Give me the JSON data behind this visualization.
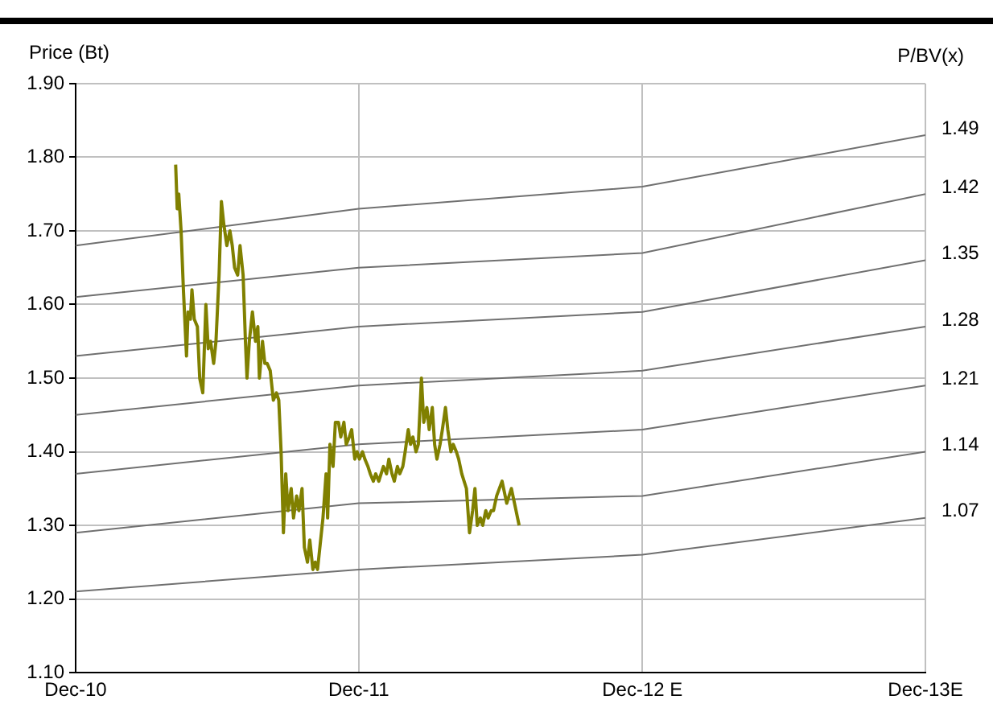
{
  "chart_data": {
    "type": "line",
    "ylabel": "Price (Bt)",
    "y2label": "P/BV(x)",
    "xlim": [
      "2010-12",
      "2013-12"
    ],
    "xticks": [
      {
        "value": "2010-12",
        "label": "Dec-10"
      },
      {
        "value": "2011-12",
        "label": "Dec-11"
      },
      {
        "value": "2012-12",
        "label": "Dec-12 E"
      },
      {
        "value": "2013-12",
        "label": "Dec-13E"
      }
    ],
    "ylim": [
      1.1,
      1.9
    ],
    "yticks": [
      {
        "value": 1.1,
        "label": "1.10"
      },
      {
        "value": 1.2,
        "label": "1.20"
      },
      {
        "value": 1.3,
        "label": "1.30"
      },
      {
        "value": 1.4,
        "label": "1.40"
      },
      {
        "value": 1.5,
        "label": "1.50"
      },
      {
        "value": 1.6,
        "label": "1.60"
      },
      {
        "value": 1.7,
        "label": "1.70"
      },
      {
        "value": 1.8,
        "label": "1.80"
      },
      {
        "value": 1.9,
        "label": "1.90"
      }
    ],
    "grid": true,
    "legend": false,
    "marker": "none",
    "line_style": "solid",
    "series": [
      {
        "color": "#808000",
        "x": [
          "2011-04-09",
          "2011-04-11",
          "2011-04-13",
          "2011-04-16",
          "2011-04-19",
          "2011-04-23",
          "2011-04-25",
          "2011-04-28",
          "2011-04-30",
          "2011-05-03",
          "2011-05-07",
          "2011-05-10",
          "2011-05-14",
          "2011-05-18",
          "2011-05-21",
          "2011-05-24",
          "2011-05-28",
          "2011-05-31",
          "2011-06-04",
          "2011-06-07",
          "2011-06-10",
          "2011-06-14",
          "2011-06-18",
          "2011-06-21",
          "2011-06-24",
          "2011-06-28",
          "2011-07-01",
          "2011-07-05",
          "2011-07-08",
          "2011-07-10",
          "2011-07-13",
          "2011-07-17",
          "2011-07-21",
          "2011-07-24",
          "2011-07-26",
          "2011-07-30",
          "2011-08-02",
          "2011-08-05",
          "2011-08-09",
          "2011-08-13",
          "2011-08-17",
          "2011-08-20",
          "2011-08-23",
          "2011-08-26",
          "2011-08-29",
          "2011-09-01",
          "2011-09-05",
          "2011-09-08",
          "2011-09-12",
          "2011-09-15",
          "2011-09-19",
          "2011-09-22",
          "2011-09-26",
          "2011-09-29",
          "2011-10-03",
          "2011-10-06",
          "2011-10-09",
          "2011-10-13",
          "2011-10-16",
          "2011-10-20",
          "2011-10-22",
          "2011-10-25",
          "2011-10-29",
          "2011-11-01",
          "2011-11-05",
          "2011-11-08",
          "2011-11-12",
          "2011-11-15",
          "2011-11-19",
          "2011-11-22",
          "2011-11-26",
          "2011-11-29",
          "2011-12-02",
          "2011-12-06",
          "2011-12-09",
          "2011-12-13",
          "2011-12-16",
          "2011-12-20",
          "2011-12-23",
          "2011-12-27",
          "2011-12-30",
          "2012-01-02",
          "2012-01-06",
          "2012-01-09",
          "2012-01-13",
          "2012-01-16",
          "2012-01-20",
          "2012-01-23",
          "2012-01-27",
          "2012-01-30",
          "2012-02-03",
          "2012-02-06",
          "2012-02-09",
          "2012-02-13",
          "2012-02-16",
          "2012-02-20",
          "2012-02-23",
          "2012-02-27",
          "2012-03-01",
          "2012-03-05",
          "2012-03-08",
          "2012-03-11",
          "2012-03-15",
          "2012-03-18",
          "2012-03-22",
          "2012-03-25",
          "2012-03-29",
          "2012-04-01",
          "2012-04-05",
          "2012-04-08",
          "2012-04-12",
          "2012-04-15",
          "2012-04-18",
          "2012-04-22",
          "2012-04-26",
          "2012-04-29",
          "2012-05-02",
          "2012-05-06",
          "2012-05-09",
          "2012-05-13",
          "2012-05-16",
          "2012-05-20",
          "2012-05-23",
          "2012-05-27",
          "2012-06-03",
          "2012-06-09",
          "2012-06-15",
          "2012-06-21",
          "2012-06-25"
        ],
        "values": [
          1.79,
          1.73,
          1.75,
          1.7,
          1.62,
          1.53,
          1.59,
          1.58,
          1.62,
          1.58,
          1.57,
          1.5,
          1.48,
          1.6,
          1.54,
          1.55,
          1.52,
          1.55,
          1.64,
          1.74,
          1.71,
          1.68,
          1.7,
          1.68,
          1.65,
          1.64,
          1.68,
          1.64,
          1.55,
          1.5,
          1.55,
          1.59,
          1.55,
          1.57,
          1.5,
          1.55,
          1.52,
          1.52,
          1.51,
          1.47,
          1.48,
          1.47,
          1.4,
          1.29,
          1.37,
          1.32,
          1.35,
          1.31,
          1.34,
          1.32,
          1.35,
          1.27,
          1.25,
          1.28,
          1.24,
          1.25,
          1.24,
          1.28,
          1.31,
          1.37,
          1.31,
          1.41,
          1.38,
          1.44,
          1.44,
          1.42,
          1.44,
          1.41,
          1.42,
          1.43,
          1.39,
          1.4,
          1.39,
          1.4,
          1.39,
          1.38,
          1.37,
          1.36,
          1.37,
          1.36,
          1.37,
          1.38,
          1.37,
          1.39,
          1.37,
          1.36,
          1.38,
          1.37,
          1.38,
          1.4,
          1.43,
          1.41,
          1.42,
          1.4,
          1.41,
          1.5,
          1.44,
          1.46,
          1.43,
          1.46,
          1.41,
          1.39,
          1.41,
          1.43,
          1.46,
          1.43,
          1.4,
          1.41,
          1.4,
          1.39,
          1.37,
          1.36,
          1.35,
          1.29,
          1.32,
          1.35,
          1.3,
          1.31,
          1.3,
          1.32,
          1.31,
          1.32,
          1.32,
          1.34,
          1.36,
          1.33,
          1.35,
          1.32,
          1.3
        ]
      },
      {
        "name": "1.49",
        "color": "#707070",
        "x": [
          "2010-12",
          "2011-12",
          "2012-12",
          "2013-12"
        ],
        "values": [
          1.68,
          1.73,
          1.76,
          1.83
        ]
      },
      {
        "name": "1.42",
        "color": "#707070",
        "x": [
          "2010-12",
          "2011-12",
          "2012-12",
          "2013-12"
        ],
        "values": [
          1.61,
          1.65,
          1.67,
          1.75
        ]
      },
      {
        "name": "1.35",
        "color": "#707070",
        "x": [
          "2010-12",
          "2011-12",
          "2012-12",
          "2013-12"
        ],
        "values": [
          1.53,
          1.57,
          1.59,
          1.66
        ]
      },
      {
        "name": "1.28",
        "color": "#707070",
        "x": [
          "2010-12",
          "2011-12",
          "2012-12",
          "2013-12"
        ],
        "values": [
          1.45,
          1.49,
          1.51,
          1.57
        ]
      },
      {
        "name": "1.21",
        "color": "#707070",
        "x": [
          "2010-12",
          "2011-12",
          "2012-12",
          "2013-12"
        ],
        "values": [
          1.37,
          1.41,
          1.43,
          1.49
        ]
      },
      {
        "name": "1.14",
        "color": "#707070",
        "x": [
          "2010-12",
          "2011-12",
          "2012-12",
          "2013-12"
        ],
        "values": [
          1.29,
          1.33,
          1.34,
          1.4
        ]
      },
      {
        "name": "1.07",
        "color": "#707070",
        "x": [
          "2010-12",
          "2011-12",
          "2012-12",
          "2013-12"
        ],
        "values": [
          1.21,
          1.24,
          1.26,
          1.31
        ]
      }
    ]
  }
}
